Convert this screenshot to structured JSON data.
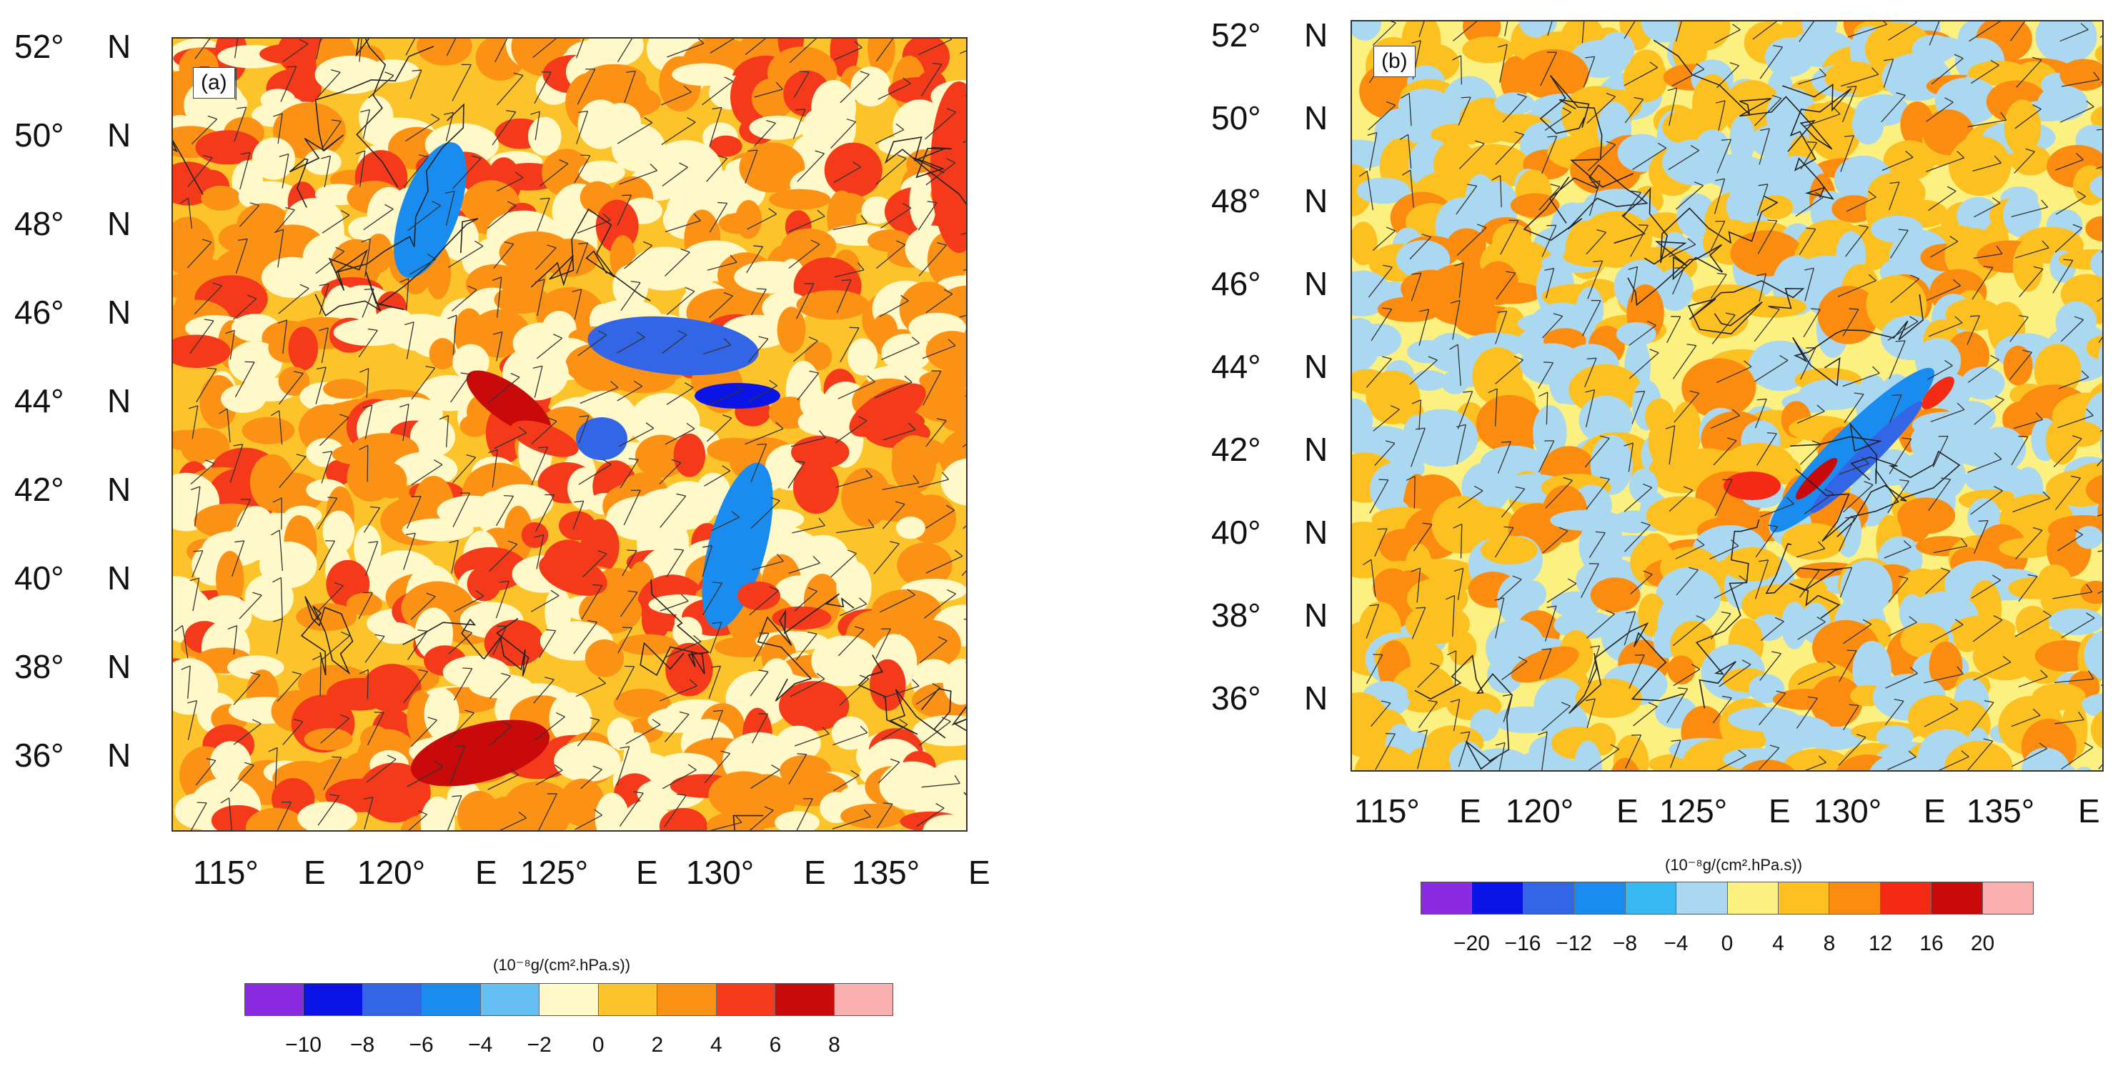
{
  "panels": [
    {
      "tag": "(a)",
      "lat_labels": [
        "52°",
        "50°",
        "48°",
        "46°",
        "44°",
        "42°",
        "40°",
        "38°",
        "36°"
      ],
      "lat_dir": "N",
      "lon_labels": [
        "115°",
        "120°",
        "125°",
        "130°",
        "135°"
      ],
      "lon_dir": "E",
      "colorbar": {
        "unit": "(10⁻⁸g/(cm².hPa.s))",
        "ticks": [
          "−10",
          "−8",
          "−6",
          "−4",
          "−2",
          "0",
          "2",
          "4",
          "6",
          "8"
        ],
        "colors": [
          "#8a2be2",
          "#0a14e6",
          "#3366e6",
          "#1a8cf0",
          "#66bff2",
          "#fff8c8",
          "#fcc42a",
          "#fb9216",
          "#f43a1a",
          "#c80a0a",
          "#fbb0b0"
        ]
      }
    },
    {
      "tag": "(b)",
      "lat_labels": [
        "52°",
        "50°",
        "48°",
        "46°",
        "44°",
        "42°",
        "40°",
        "38°",
        "36°"
      ],
      "lat_dir": "N",
      "lon_labels": [
        "115°",
        "120°",
        "125°",
        "130°",
        "135°"
      ],
      "lon_dir": "E",
      "colorbar": {
        "unit": "(10⁻⁸g/(cm².hPa.s))",
        "ticks": [
          "−20",
          "−16",
          "−12",
          "−8",
          "−4",
          "0",
          "4",
          "8",
          "12",
          "16",
          "20"
        ],
        "colors": [
          "#8a2be2",
          "#0a14e6",
          "#3366e6",
          "#1a8cf0",
          "#38b8f0",
          "#aad8f0",
          "#fcf080",
          "#fcc020",
          "#fb8c10",
          "#f42a14",
          "#c80a0a",
          "#fbb0b0"
        ]
      }
    }
  ]
}
